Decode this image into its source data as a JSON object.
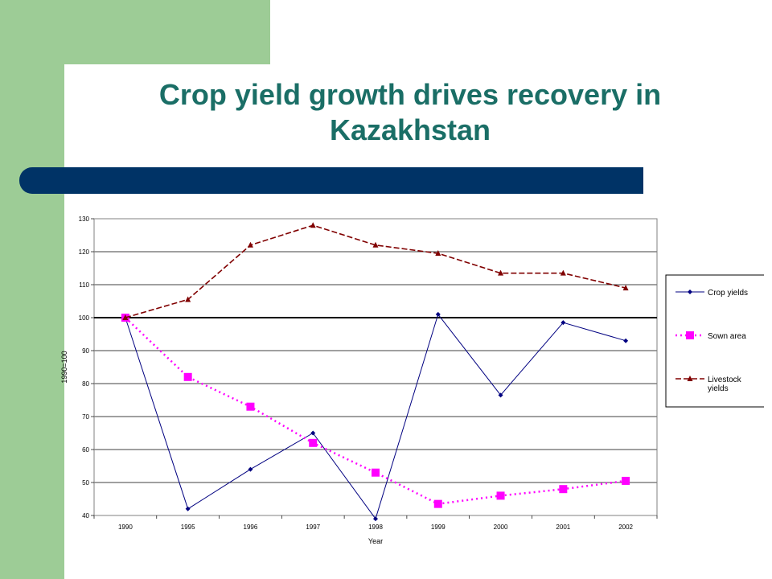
{
  "colors": {
    "green": "#9dcc96",
    "navy": "#003366",
    "title": "#1a6e66",
    "crop": "#000080",
    "sown": "#ff00ff",
    "livestock": "#800000"
  },
  "slide": {
    "title_line1": "Crop yield growth drives recovery in",
    "title_line2": "Kazakhstan"
  },
  "chart_data": {
    "type": "line",
    "categories": [
      "1990",
      "1995",
      "1996",
      "1997",
      "1998",
      "1999",
      "2000",
      "2001",
      "2002"
    ],
    "series": [
      {
        "name": "Crop yields",
        "marker": "diamond",
        "line": "solid",
        "values": [
          100,
          42,
          54,
          65,
          39,
          101,
          76.5,
          98.5,
          93
        ]
      },
      {
        "name": "Sown area",
        "marker": "square",
        "line": "dotted",
        "values": [
          100,
          82,
          73,
          62,
          53,
          43.5,
          46,
          48,
          50.5
        ]
      },
      {
        "name": "Livestock yields",
        "marker": "triangle",
        "line": "dashed",
        "values": [
          100,
          105.5,
          122,
          128,
          122,
          119.5,
          113.5,
          113.5,
          109
        ]
      }
    ],
    "yticks": [
      "40",
      "50",
      "60",
      "70",
      "80",
      "90",
      "100",
      "110",
      "120",
      "130"
    ],
    "ylim": [
      40,
      130
    ],
    "reference_line": 100,
    "xlabel": "Year",
    "ylabel": "1990=100",
    "legend": {
      "placement": "right",
      "items": [
        {
          "lines": [
            "Crop yields"
          ]
        },
        {
          "lines": [
            "Sown area"
          ]
        },
        {
          "lines": [
            "Livestock",
            "yields"
          ]
        }
      ]
    },
    "grid": true
  }
}
